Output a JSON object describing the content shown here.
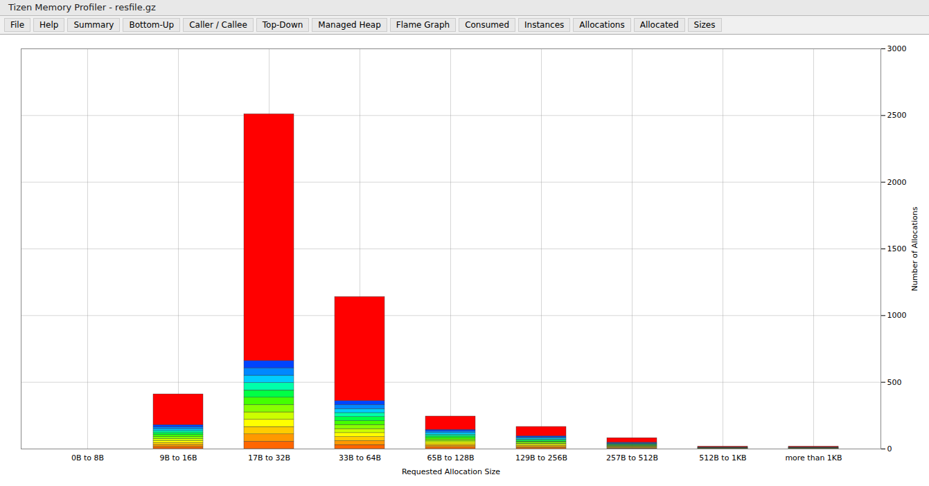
{
  "chart_data": {
    "type": "bar",
    "title": "Tizen Memory Profiler - resfile.gz",
    "annotations": [
      "File",
      "Help",
      "Summary",
      "Bottom-Up",
      "Caller / Callee",
      "Top-Down",
      "Managed Heap",
      "Flame Graph",
      "Consumed",
      "Instances",
      "Allocations",
      "Allocated",
      "Sizes"
    ],
    "x_label": "Requested Allocation Size",
    "y_label": "Number of Allocations",
    "categories": [
      "0B to 8B",
      "9B to 16B",
      "17B to 32B",
      "33B to 64B",
      "65B to 128B",
      "129B to 256B",
      "257B to 512B",
      "512B to 1KB",
      "more than 1KB"
    ],
    "stacked": true,
    "grid": true,
    "ylim": [
      0,
      3000
    ],
    "yticks": [
      0,
      500,
      1000,
      1500,
      2000,
      2500,
      3000
    ],
    "series": [
      {
        "color": "#ff6600",
        "values": [
          0,
          15,
          55,
          30,
          12,
          8,
          4,
          1,
          1
        ]
      },
      {
        "color": "#ff9900",
        "values": [
          0,
          15,
          55,
          30,
          12,
          8,
          4,
          1,
          1
        ]
      },
      {
        "color": "#ffcc00",
        "values": [
          0,
          15,
          55,
          30,
          12,
          8,
          4,
          1,
          1
        ]
      },
      {
        "color": "#ffff00",
        "values": [
          0,
          15,
          55,
          30,
          12,
          8,
          4,
          1,
          1
        ]
      },
      {
        "color": "#ccff00",
        "values": [
          0,
          15,
          55,
          30,
          12,
          8,
          4,
          1,
          1
        ]
      },
      {
        "color": "#88ff00",
        "values": [
          0,
          15,
          55,
          30,
          12,
          8,
          4,
          1,
          1
        ]
      },
      {
        "color": "#44ff00",
        "values": [
          0,
          15,
          55,
          30,
          12,
          8,
          4,
          1,
          1
        ]
      },
      {
        "color": "#00ff44",
        "values": [
          0,
          15,
          55,
          30,
          12,
          8,
          4,
          1,
          1
        ]
      },
      {
        "color": "#00ffaa",
        "values": [
          0,
          15,
          55,
          30,
          12,
          8,
          4,
          1,
          1
        ]
      },
      {
        "color": "#00ccff",
        "values": [
          0,
          15,
          55,
          30,
          12,
          8,
          4,
          1,
          1
        ]
      },
      {
        "color": "#0088ff",
        "values": [
          0,
          15,
          55,
          30,
          12,
          8,
          4,
          1,
          1
        ]
      },
      {
        "color": "#0044ff",
        "values": [
          0,
          15,
          55,
          30,
          12,
          8,
          4,
          1,
          1
        ]
      },
      {
        "color": "#ff0000",
        "values": [
          0,
          230,
          1850,
          780,
          100,
          70,
          34,
          6,
          6
        ]
      }
    ]
  }
}
